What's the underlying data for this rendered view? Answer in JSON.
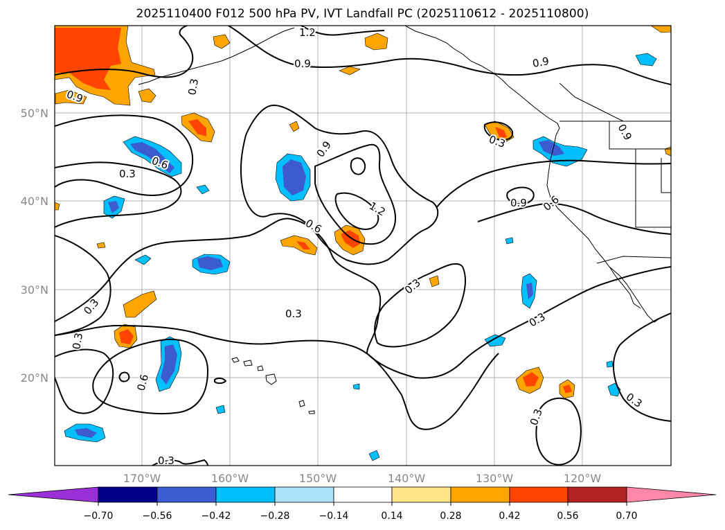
{
  "title": "2025110400 F012 500 hPa PV, IVT Landfall PC (2025110612 - 2025110800)",
  "lat_labels": [
    "50°N",
    "40°N",
    "30°N",
    "20°N"
  ],
  "lon_labels": [
    "170°W",
    "160°W",
    "150°W",
    "140°W",
    "130°W",
    "120°W"
  ],
  "contour_labels": [
    "1.2",
    "0.9",
    "0.3",
    "0.9",
    "0.9",
    "0.6",
    "0.3",
    "1.2",
    "0.6",
    "0.3",
    "0.3",
    "0.3",
    "0.3",
    "0.9",
    "0.6",
    "0.9",
    "0.3",
    "0.6",
    "0.3",
    "0.3",
    "0.3",
    "0.3"
  ],
  "colorbar": {
    "ticks": [
      "−0.70",
      "−0.56",
      "−0.42",
      "−0.28",
      "−0.14",
      "0.14",
      "0.28",
      "0.42",
      "0.56",
      "0.70"
    ],
    "colors": [
      "#9b30d9",
      "#00008b",
      "#3b5bce",
      "#00bfff",
      "#aee3fa",
      "#ffffff",
      "#ffe58a",
      "#ffa500",
      "#ff4500",
      "#b22222",
      "#ff88aa"
    ]
  },
  "colors": {
    "orange": "#ffa500",
    "red_orange": "#ff4500",
    "yellow": "#ffe58a",
    "cyan": "#00bfff",
    "light_blue": "#aee3fa",
    "royal_blue": "#3b5bce",
    "grid": "#b0b0b0",
    "tick_text": "#888888"
  }
}
